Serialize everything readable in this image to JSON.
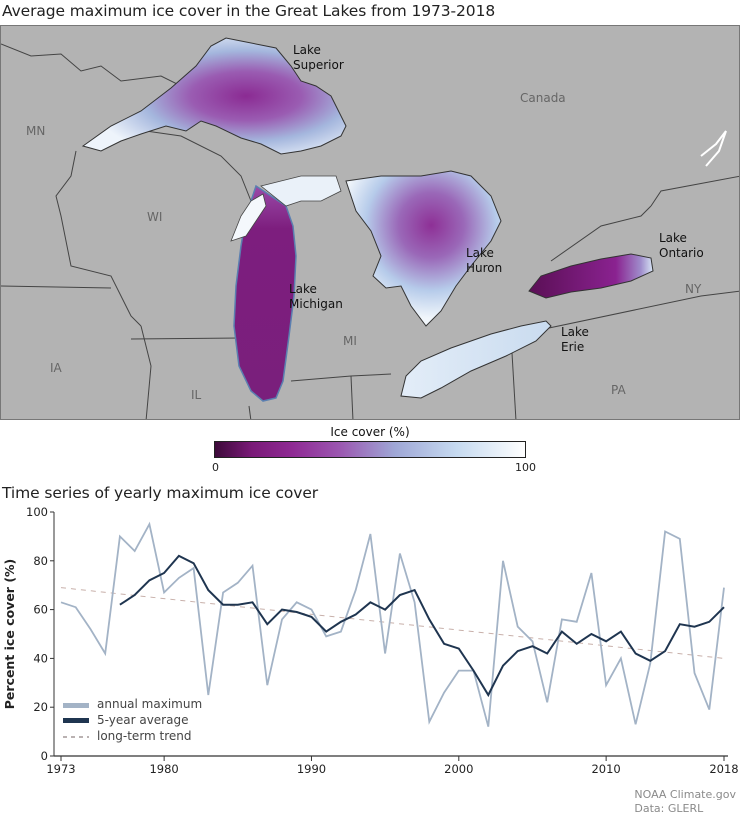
{
  "map": {
    "title": "Average maximum ice cover in the Great Lakes from 1973-2018",
    "lake_labels": {
      "superior": "Lake\nSuperior",
      "michigan": "Lake\nMichigan",
      "huron": "Lake\nHuron",
      "erie": "Lake\nErie",
      "ontario": "Lake\nOntario"
    },
    "region_labels": {
      "canada": "Canada",
      "mn": "MN",
      "wi": "WI",
      "mi": "MI",
      "ia": "IA",
      "il": "IL",
      "ny": "NY",
      "pa": "PA"
    },
    "colorbar": {
      "title": "Ice cover (%)",
      "min_label": "0",
      "max_label": "100",
      "colors": [
        "#3d0a3a",
        "#8f2a94",
        "#9fa7d6",
        "#ffffff"
      ]
    },
    "land_color": "#b3b3b3"
  },
  "timeseries": {
    "title": "Time series of yearly maximum ice cover",
    "ylabel": "Percent ice cover (%)",
    "legend": {
      "annual": "annual maximum",
      "avg": "5-year average",
      "trend": "long-term trend"
    }
  },
  "credit": {
    "line1": "NOAA Climate.gov",
    "line2": "Data: GLERL"
  },
  "chart_data": {
    "type": "line",
    "title": "Time series of yearly maximum ice cover",
    "xlabel": "",
    "ylabel": "Percent ice cover (%)",
    "xlim": [
      1973,
      2018
    ],
    "ylim": [
      0,
      100
    ],
    "xticks": [
      1973,
      1980,
      1990,
      2000,
      2010,
      2018
    ],
    "yticks": [
      0,
      20,
      40,
      60,
      80,
      100
    ],
    "grid": false,
    "legend_position": "lower left",
    "series": [
      {
        "name": "annual maximum",
        "color": "#9fb0c4",
        "x": [
          1973,
          1974,
          1975,
          1976,
          1977,
          1978,
          1979,
          1980,
          1981,
          1982,
          1983,
          1984,
          1985,
          1986,
          1987,
          1988,
          1989,
          1990,
          1991,
          1992,
          1993,
          1994,
          1995,
          1996,
          1997,
          1998,
          1999,
          2000,
          2001,
          2002,
          2003,
          2004,
          2005,
          2006,
          2007,
          2008,
          2009,
          2010,
          2011,
          2012,
          2013,
          2014,
          2015,
          2016,
          2017,
          2018
        ],
        "values": [
          63,
          61,
          52,
          42,
          90,
          84,
          95,
          67,
          73,
          77,
          25,
          67,
          71,
          78,
          29,
          56,
          63,
          60,
          49,
          51,
          68,
          91,
          42,
          83,
          63,
          14,
          26,
          35,
          35,
          12,
          80,
          53,
          47,
          22,
          56,
          55,
          75,
          29,
          40,
          13,
          38,
          92,
          89,
          34,
          19,
          69
        ]
      },
      {
        "name": "5-year average",
        "color": "#1f3a5a",
        "x": [
          1977,
          1978,
          1979,
          1980,
          1981,
          1982,
          1983,
          1984,
          1985,
          1986,
          1987,
          1988,
          1989,
          1990,
          1991,
          1992,
          1993,
          1994,
          1995,
          1996,
          1997,
          1998,
          1999,
          2000,
          2001,
          2002,
          2003,
          2004,
          2005,
          2006,
          2007,
          2008,
          2009,
          2010,
          2011,
          2012,
          2013,
          2014,
          2015,
          2016,
          2017,
          2018
        ],
        "values": [
          62,
          66,
          72,
          75,
          82,
          79,
          68,
          62,
          62,
          63,
          54,
          60,
          59,
          57,
          51,
          55,
          58,
          63,
          60,
          66,
          68,
          56,
          46,
          44,
          35,
          25,
          37,
          43,
          45,
          42,
          51,
          46,
          50,
          47,
          51,
          42,
          39,
          43,
          54,
          53,
          55,
          61
        ]
      },
      {
        "name": "long-term trend",
        "color": "#c8a8a0",
        "style": "dashed",
        "x": [
          1973,
          2018
        ],
        "values": [
          69,
          40
        ]
      }
    ]
  }
}
